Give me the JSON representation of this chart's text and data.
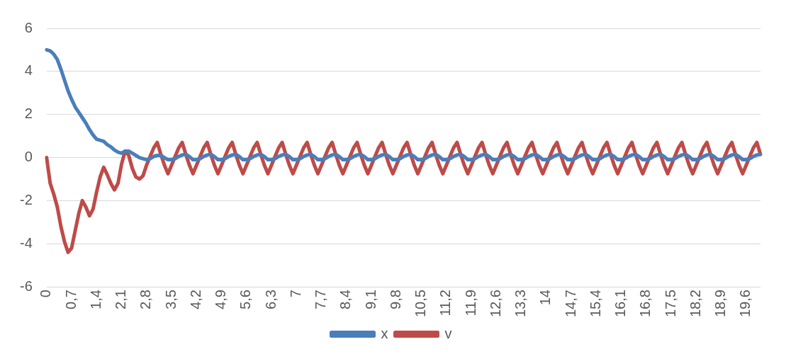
{
  "chart_data": {
    "type": "line",
    "categories": [
      "0",
      null,
      null,
      null,
      null,
      null,
      null,
      "0,7",
      null,
      null,
      null,
      null,
      null,
      null,
      "1,4",
      null,
      null,
      null,
      null,
      null,
      null,
      "2,1",
      null,
      null,
      null,
      null,
      null,
      null,
      "2,8",
      null,
      null,
      null,
      null,
      null,
      null,
      "3,5",
      null,
      null,
      null,
      null,
      null,
      null,
      "4,2",
      null,
      null,
      null,
      null,
      null,
      null,
      "4,9",
      null,
      null,
      null,
      null,
      null,
      null,
      "5,6",
      null,
      null,
      null,
      null,
      null,
      null,
      "6,3",
      null,
      null,
      null,
      null,
      null,
      null,
      "7",
      null,
      null,
      null,
      null,
      null,
      null,
      "7,7",
      null,
      null,
      null,
      null,
      null,
      null,
      "8,4",
      null,
      null,
      null,
      null,
      null,
      null,
      "9,1",
      null,
      null,
      null,
      null,
      null,
      null,
      "9,8",
      null,
      null,
      null,
      null,
      null,
      null,
      "10,5",
      null,
      null,
      null,
      null,
      null,
      null,
      "11,2",
      null,
      null,
      null,
      null,
      null,
      null,
      "11,9",
      null,
      null,
      null,
      null,
      null,
      null,
      "12,6",
      null,
      null,
      null,
      null,
      null,
      null,
      "13,3",
      null,
      null,
      null,
      null,
      null,
      null,
      "14",
      null,
      null,
      null,
      null,
      null,
      null,
      "14,7",
      null,
      null,
      null,
      null,
      null,
      null,
      "15,4",
      null,
      null,
      null,
      null,
      null,
      null,
      "16,1",
      null,
      null,
      null,
      null,
      null,
      null,
      "16,8",
      null,
      null,
      null,
      null,
      null,
      null,
      "17,5",
      null,
      null,
      null,
      null,
      null,
      null,
      "18,2",
      null,
      null,
      null,
      null,
      null,
      null,
      "18,9",
      null,
      null,
      null,
      null,
      null,
      null,
      "19,6",
      null,
      null,
      null,
      null
    ],
    "series": [
      {
        "name": "x",
        "color": "#4a7ebb",
        "values": [
          5,
          4.95,
          4.8,
          4.55,
          4.1,
          3.6,
          3.1,
          2.7,
          2.35,
          2.1,
          1.85,
          1.6,
          1.3,
          1.05,
          0.85,
          0.8,
          0.75,
          0.6,
          0.5,
          0.35,
          0.25,
          0.2,
          0.3,
          0.3,
          0.2,
          0.1,
          0.0,
          -0.05,
          -0.1,
          -0.05,
          0.05,
          0.1,
          0.1,
          0.0,
          -0.1,
          -0.1,
          -0.05,
          0.05,
          0.12,
          0.15,
          0.05,
          -0.1,
          -0.1,
          -0.05,
          0.05,
          0.12,
          0.15,
          0.05,
          -0.1,
          -0.1,
          -0.05,
          0.05,
          0.12,
          0.15,
          0.05,
          -0.1,
          -0.1,
          -0.05,
          0.05,
          0.12,
          0.15,
          0.05,
          -0.1,
          -0.1,
          -0.05,
          0.05,
          0.12,
          0.15,
          0.05,
          -0.1,
          -0.1,
          -0.05,
          0.05,
          0.12,
          0.15,
          0.05,
          -0.1,
          -0.1,
          -0.05,
          0.05,
          0.12,
          0.15,
          0.05,
          -0.1,
          -0.1,
          -0.05,
          0.05,
          0.12,
          0.15,
          0.05,
          -0.1,
          -0.1,
          -0.05,
          0.05,
          0.12,
          0.15,
          0.05,
          -0.1,
          -0.1,
          -0.05,
          0.05,
          0.12,
          0.15,
          0.05,
          -0.1,
          -0.1,
          -0.05,
          0.05,
          0.12,
          0.15,
          0.05,
          -0.1,
          -0.1,
          -0.05,
          0.05,
          0.12,
          0.15,
          0.05,
          -0.1,
          -0.1,
          -0.05,
          0.05,
          0.12,
          0.15,
          0.05,
          -0.1,
          -0.1,
          -0.05,
          0.05,
          0.12,
          0.15,
          0.05,
          -0.1,
          -0.1,
          -0.05,
          0.05,
          0.12,
          0.15,
          0.05,
          -0.1,
          -0.1,
          -0.05,
          0.05,
          0.12,
          0.15,
          0.05,
          -0.1,
          -0.1,
          -0.05,
          0.05,
          0.12,
          0.15,
          0.05,
          -0.1,
          -0.1,
          -0.05,
          0.05,
          0.12,
          0.15,
          0.05,
          -0.1,
          -0.1,
          -0.05,
          0.05,
          0.12,
          0.15,
          0.05,
          -0.1,
          -0.1,
          -0.05,
          0.05,
          0.12,
          0.15,
          0.05,
          -0.1,
          -0.1,
          -0.05,
          0.05,
          0.12,
          0.15,
          0.05,
          -0.1,
          -0.1,
          -0.05,
          0.05,
          0.12,
          0.15,
          0.05,
          -0.1,
          -0.1,
          -0.05,
          0.05,
          0.12,
          0.15,
          0.05,
          -0.1,
          -0.1,
          -0.05,
          0.05,
          0.12,
          0.15
        ]
      },
      {
        "name": "v",
        "color": "#be4b48",
        "values": [
          0,
          -1.2,
          -1.7,
          -2.3,
          -3.2,
          -3.9,
          -4.4,
          -4.2,
          -3.4,
          -2.6,
          -2.0,
          -2.3,
          -2.7,
          -2.4,
          -1.6,
          -0.9,
          -0.45,
          -0.8,
          -1.2,
          -1.5,
          -1.2,
          -0.3,
          0.3,
          0.1,
          -0.5,
          -0.9,
          -1.0,
          -0.85,
          -0.35,
          0.05,
          0.45,
          0.7,
          0.15,
          -0.35,
          -0.75,
          -0.35,
          0.05,
          0.45,
          0.7,
          0.15,
          -0.35,
          -0.75,
          -0.35,
          0.05,
          0.45,
          0.7,
          0.15,
          -0.35,
          -0.75,
          -0.35,
          0.05,
          0.45,
          0.7,
          0.15,
          -0.35,
          -0.75,
          -0.35,
          0.05,
          0.45,
          0.7,
          0.15,
          -0.35,
          -0.75,
          -0.35,
          0.05,
          0.45,
          0.7,
          0.15,
          -0.35,
          -0.75,
          -0.35,
          0.05,
          0.45,
          0.7,
          0.15,
          -0.35,
          -0.75,
          -0.35,
          0.05,
          0.45,
          0.7,
          0.15,
          -0.35,
          -0.75,
          -0.35,
          0.05,
          0.45,
          0.7,
          0.15,
          -0.35,
          -0.75,
          -0.35,
          0.05,
          0.45,
          0.7,
          0.15,
          -0.35,
          -0.75,
          -0.35,
          0.05,
          0.45,
          0.7,
          0.15,
          -0.35,
          -0.75,
          -0.35,
          0.05,
          0.45,
          0.7,
          0.15,
          -0.35,
          -0.75,
          -0.35,
          0.05,
          0.45,
          0.7,
          0.15,
          -0.35,
          -0.75,
          -0.35,
          0.05,
          0.45,
          0.7,
          0.15,
          -0.35,
          -0.75,
          -0.35,
          0.05,
          0.45,
          0.7,
          0.15,
          -0.35,
          -0.75,
          -0.35,
          0.05,
          0.45,
          0.7,
          0.15,
          -0.35,
          -0.75,
          -0.35,
          0.05,
          0.45,
          0.7,
          0.15,
          -0.35,
          -0.75,
          -0.35,
          0.05,
          0.45,
          0.7,
          0.15,
          -0.35,
          -0.75,
          -0.35,
          0.05,
          0.45,
          0.7,
          0.15,
          -0.35,
          -0.75,
          -0.35,
          0.05,
          0.45,
          0.7,
          0.15,
          -0.35,
          -0.75,
          -0.35,
          0.05,
          0.45,
          0.7,
          0.15,
          -0.35,
          -0.75,
          -0.35,
          0.05,
          0.45,
          0.7,
          0.15,
          -0.35,
          -0.75,
          -0.35,
          0.05,
          0.45,
          0.7,
          0.15,
          -0.35,
          -0.75,
          -0.35,
          0.05,
          0.45,
          0.7,
          0.15,
          -0.35,
          -0.75,
          -0.35,
          0.05,
          0.45,
          0.7,
          0.15
        ]
      }
    ],
    "ylim": [
      -6,
      6
    ],
    "yticks": [
      -6,
      -4,
      -2,
      0,
      2,
      4,
      6
    ],
    "grid": "y",
    "legend": "bottom"
  }
}
